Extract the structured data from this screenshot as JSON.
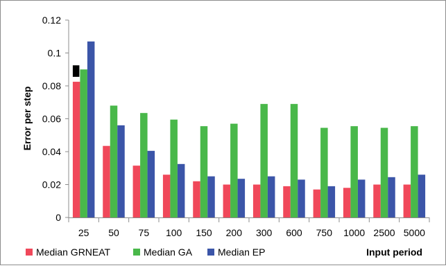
{
  "chart_data": {
    "type": "bar",
    "title": "",
    "xlabel": "Input period",
    "ylabel": "Error per step",
    "ylim": [
      0,
      0.12
    ],
    "yticks": [
      "0",
      "0.02",
      "0.04",
      "0.06",
      "0.08",
      "0.1",
      "0.12"
    ],
    "grid": false,
    "legend_position": "bottom",
    "categories": [
      "25",
      "50",
      "75",
      "100",
      "150",
      "200",
      "300",
      "600",
      "750",
      "1000",
      "2500",
      "5000"
    ],
    "series": [
      {
        "name": "Median GRNEAT",
        "color": "#f0485a",
        "values": [
          0.0825,
          0.0435,
          0.0315,
          0.026,
          0.022,
          0.02,
          0.02,
          0.019,
          0.017,
          0.018,
          0.02,
          0.02
        ]
      },
      {
        "name": "Median GA",
        "color": "#49b84a",
        "values": [
          0.09,
          0.068,
          0.0635,
          0.0595,
          0.0555,
          0.057,
          0.069,
          0.069,
          0.0545,
          0.0555,
          0.0545,
          0.0555
        ]
      },
      {
        "name": "Median EP",
        "color": "#3b55a8",
        "values": [
          0.107,
          0.056,
          0.0405,
          0.0325,
          0.025,
          0.0235,
          0.025,
          0.023,
          0.019,
          0.023,
          0.0245,
          0.026
        ]
      }
    ],
    "annotations": [
      {
        "type": "black-marker",
        "category": "25",
        "from": 0.0855,
        "to": 0.0925
      }
    ]
  }
}
